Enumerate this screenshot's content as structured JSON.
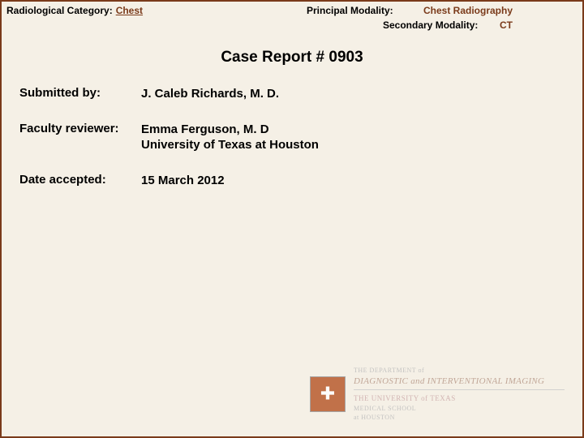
{
  "header": {
    "category_label": "Radiological Category:",
    "category_value": "Chest",
    "principal_label": "Principal Modality:",
    "principal_value": "Chest Radiography",
    "secondary_label": "Secondary Modality:",
    "secondary_value": "CT"
  },
  "title": "Case Report # 0903",
  "rows": {
    "submitted_label": "Submitted by:",
    "submitted_value": "J. Caleb Richards, M. D.",
    "reviewer_label": "Faculty reviewer:",
    "reviewer_value_line1": "Emma Ferguson, M. D",
    "reviewer_value_line2": "University of Texas at Houston",
    "date_label": "Date accepted:",
    "date_value": "15 March 2012"
  },
  "footer": {
    "dept": "THE DEPARTMENT of",
    "diag": "DIAGNOSTIC and INTERVENTIONAL IMAGING",
    "univ": "THE UNIVERSITY of TEXAS",
    "med1": "MEDICAL SCHOOL",
    "med2": "at HOUSTON"
  },
  "colors": {
    "border": "#7a3a1a",
    "background": "#f5f0e6",
    "link": "#7a3a1a",
    "text": "#000000"
  }
}
